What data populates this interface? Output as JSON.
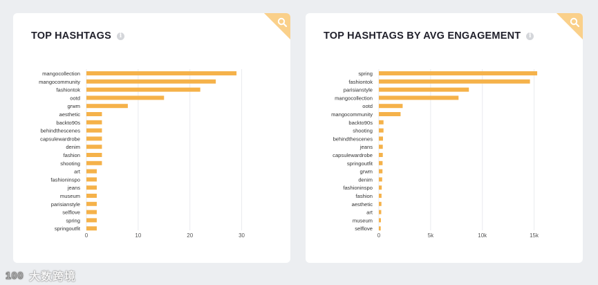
{
  "chart_data": [
    {
      "type": "bar",
      "orientation": "horizontal",
      "title": "TOP HASHTAGS",
      "categories": [
        "mangocollection",
        "mangocommunity",
        "fashiontok",
        "ootd",
        "grwm",
        "aesthetic",
        "backto90s",
        "behindthescenes",
        "capsulewardrobe",
        "denim",
        "fashion",
        "shooting",
        "art",
        "fashioninspo",
        "jeans",
        "museum",
        "parisianstyle",
        "selflove",
        "spring",
        "springoutfit"
      ],
      "values": [
        29,
        25,
        22,
        15,
        8,
        3,
        3,
        3,
        3,
        3,
        3,
        3,
        2,
        2,
        2,
        2,
        2,
        2,
        2,
        2
      ],
      "xlim": [
        0,
        35
      ],
      "xticks": [
        0,
        10,
        20,
        30
      ],
      "xtick_labels": [
        "0",
        "10",
        "20",
        "30"
      ],
      "grid": true,
      "bar_color": "#f5b24a"
    },
    {
      "type": "bar",
      "orientation": "horizontal",
      "title": "TOP HASHTAGS BY AVG ENGAGEMENT",
      "categories": [
        "spring",
        "fashiontok",
        "parisianstyle",
        "mangocollection",
        "ootd",
        "mangocommunity",
        "backto90s",
        "shooting",
        "behindthescenes",
        "jeans",
        "capsulewardrobe",
        "springoutfit",
        "grwm",
        "denim",
        "fashioninspo",
        "fashion",
        "aesthetic",
        "art",
        "museum",
        "selflove"
      ],
      "values": [
        15300,
        14600,
        8700,
        7700,
        2300,
        2100,
        450,
        450,
        400,
        380,
        380,
        360,
        350,
        320,
        280,
        260,
        250,
        230,
        200,
        180
      ],
      "xlim": [
        0,
        17500
      ],
      "xticks": [
        0,
        5000,
        10000,
        15000
      ],
      "xtick_labels": [
        "0",
        "5k",
        "10k",
        "15k"
      ],
      "grid": true,
      "bar_color": "#f5b24a"
    }
  ],
  "info_glyph": "i",
  "accent_color": "#fad08a",
  "icons": {
    "corner": "search-icon",
    "info": "info-icon"
  },
  "watermark": {
    "text": "大数跨境",
    "logo_text": "100"
  }
}
